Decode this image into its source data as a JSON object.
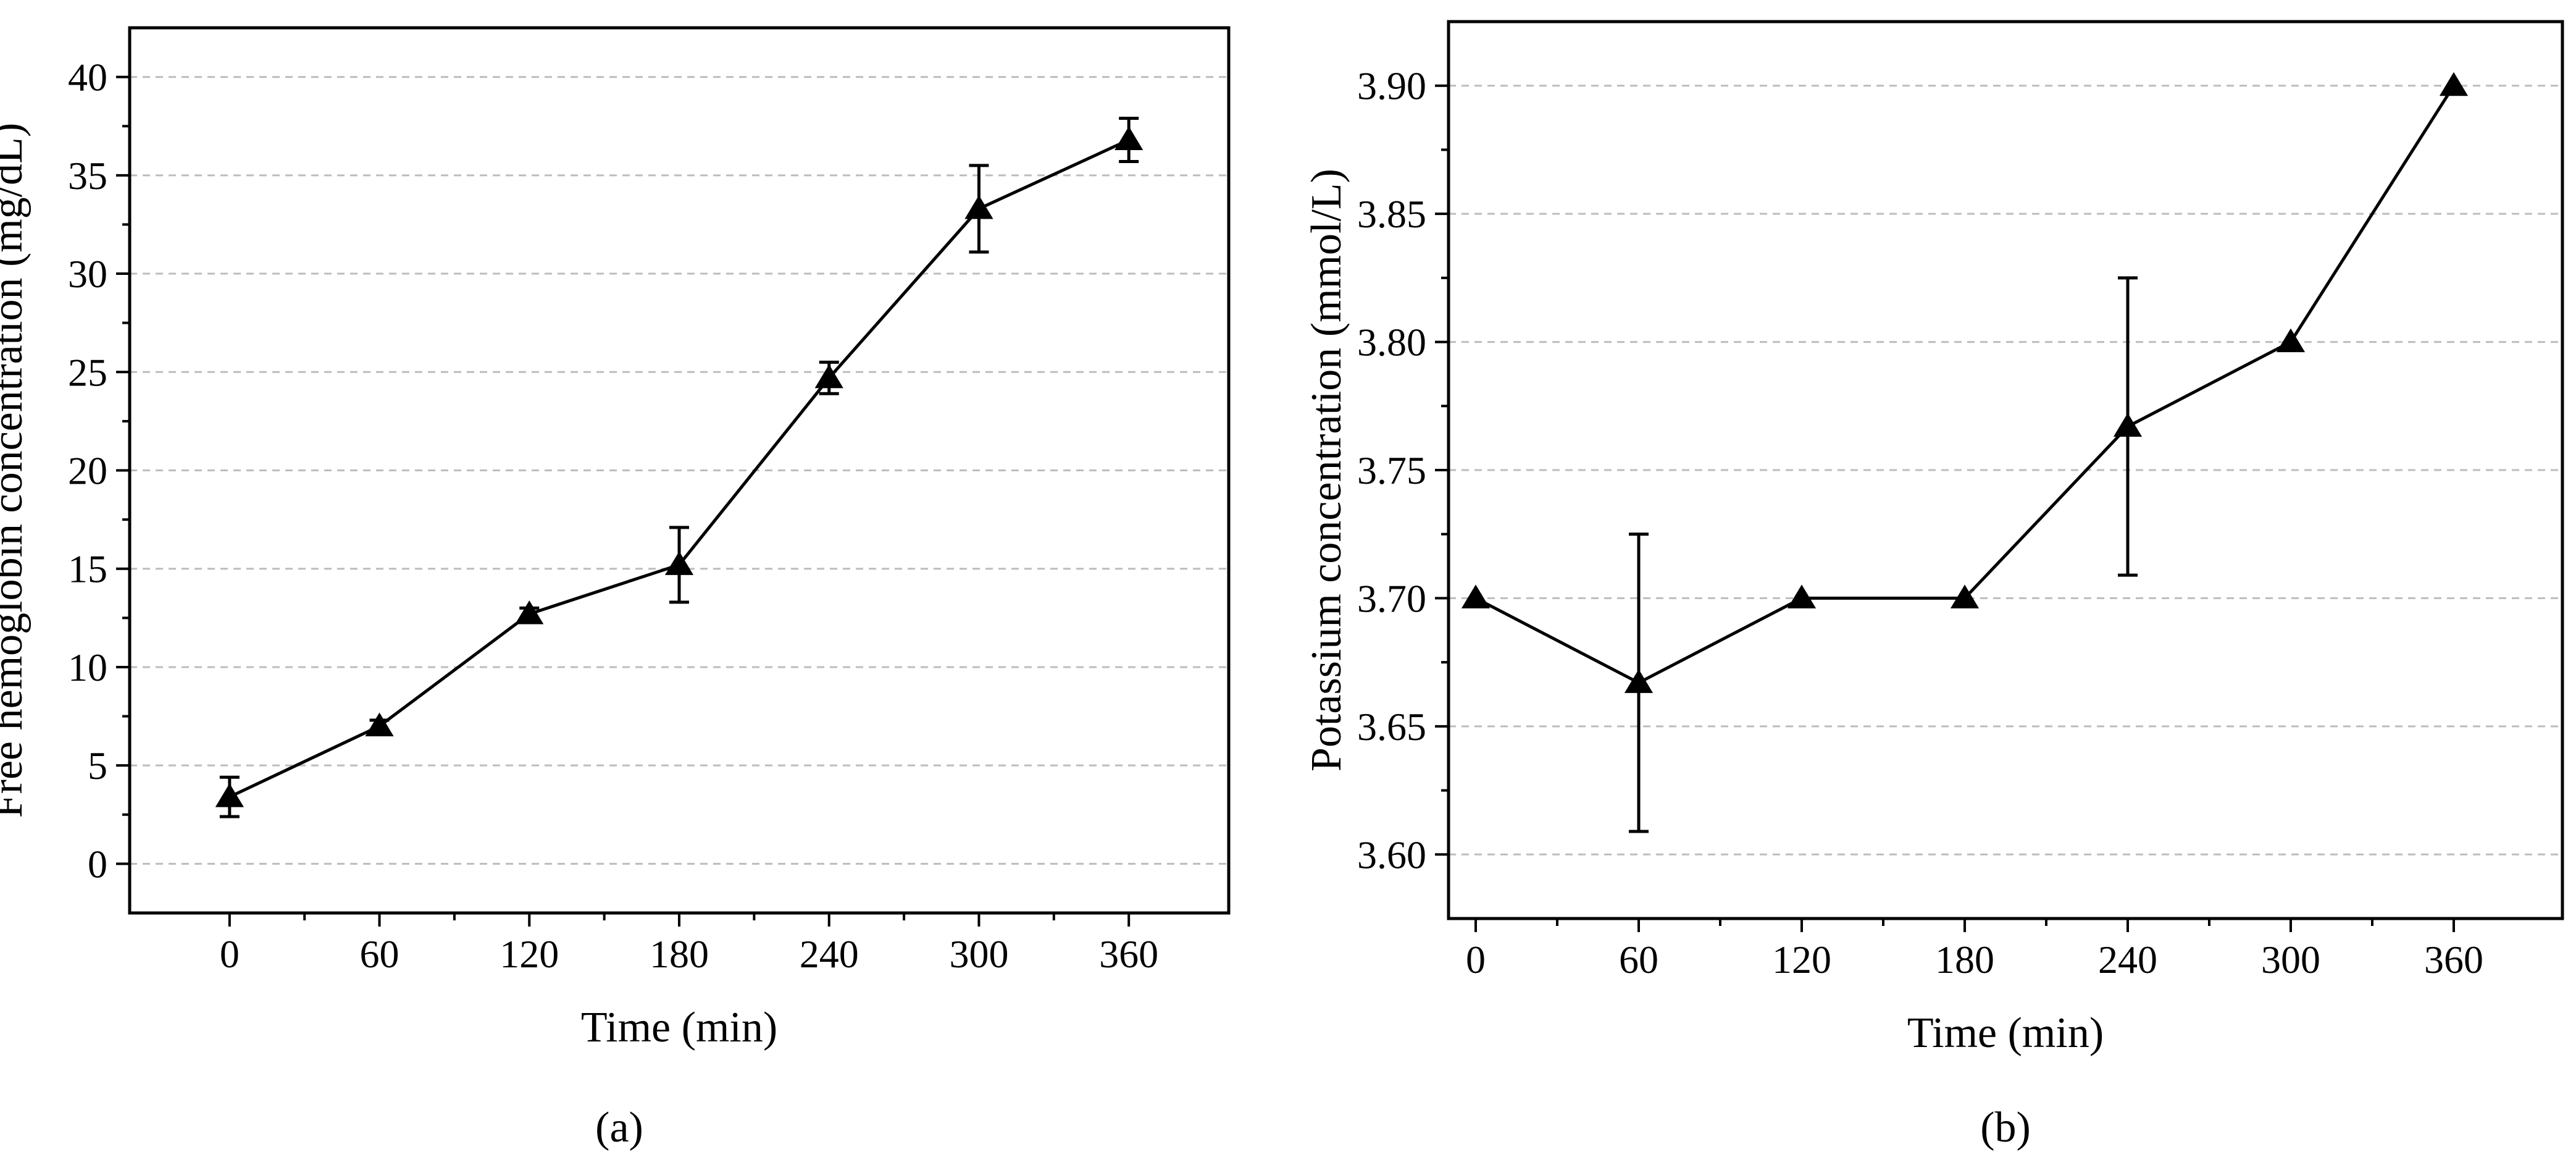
{
  "chart_data": [
    {
      "type": "line",
      "panel": "a",
      "caption": "(a)",
      "title": "",
      "xlabel": "Time (min)",
      "ylabel": "Free hemoglobin concentration (mg/dL)",
      "xlim": [
        -40,
        400
      ],
      "ylim": [
        -2.5,
        42.5
      ],
      "xticks": [
        0,
        60,
        120,
        180,
        240,
        300,
        360
      ],
      "xtick_labels": [
        "0",
        "60",
        "120",
        "180",
        "240",
        "300",
        "360"
      ],
      "yticks": [
        0,
        5,
        10,
        15,
        20,
        25,
        30,
        35,
        40
      ],
      "ytick_labels": [
        "0",
        "5",
        "10",
        "15",
        "20",
        "25",
        "30",
        "35",
        "40"
      ],
      "grid": "horizontal dashed",
      "marker": "triangle",
      "series": [
        {
          "name": "Free hemoglobin",
          "x": [
            0,
            60,
            120,
            180,
            240,
            300,
            360
          ],
          "y": [
            3.4,
            7.0,
            12.7,
            15.2,
            24.7,
            33.3,
            36.8
          ],
          "error": [
            1.0,
            0.3,
            0.3,
            1.9,
            0.8,
            2.2,
            1.1
          ]
        }
      ]
    },
    {
      "type": "line",
      "panel": "b",
      "caption": "(b)",
      "title": "",
      "xlabel": "Time (min)",
      "ylabel": "Potassium concentration (mmol/L)",
      "xlim": [
        -10,
        400
      ],
      "ylim": [
        3.575,
        3.925
      ],
      "xticks": [
        0,
        60,
        120,
        180,
        240,
        300,
        360
      ],
      "xtick_labels": [
        "0",
        "60",
        "120",
        "180",
        "240",
        "300",
        "360"
      ],
      "yticks": [
        3.6,
        3.65,
        3.7,
        3.75,
        3.8,
        3.85,
        3.9
      ],
      "ytick_labels": [
        "3.60",
        "3.65",
        "3.70",
        "3.75",
        "3.80",
        "3.85",
        "3.90"
      ],
      "grid": "horizontal dashed",
      "marker": "triangle",
      "series": [
        {
          "name": "Potassium",
          "x": [
            0,
            60,
            120,
            180,
            240,
            300,
            360
          ],
          "y": [
            3.7,
            3.667,
            3.7,
            3.7,
            3.767,
            3.8,
            3.9
          ],
          "error": [
            0,
            0.058,
            0,
            0,
            0.058,
            0,
            0
          ]
        }
      ]
    }
  ]
}
